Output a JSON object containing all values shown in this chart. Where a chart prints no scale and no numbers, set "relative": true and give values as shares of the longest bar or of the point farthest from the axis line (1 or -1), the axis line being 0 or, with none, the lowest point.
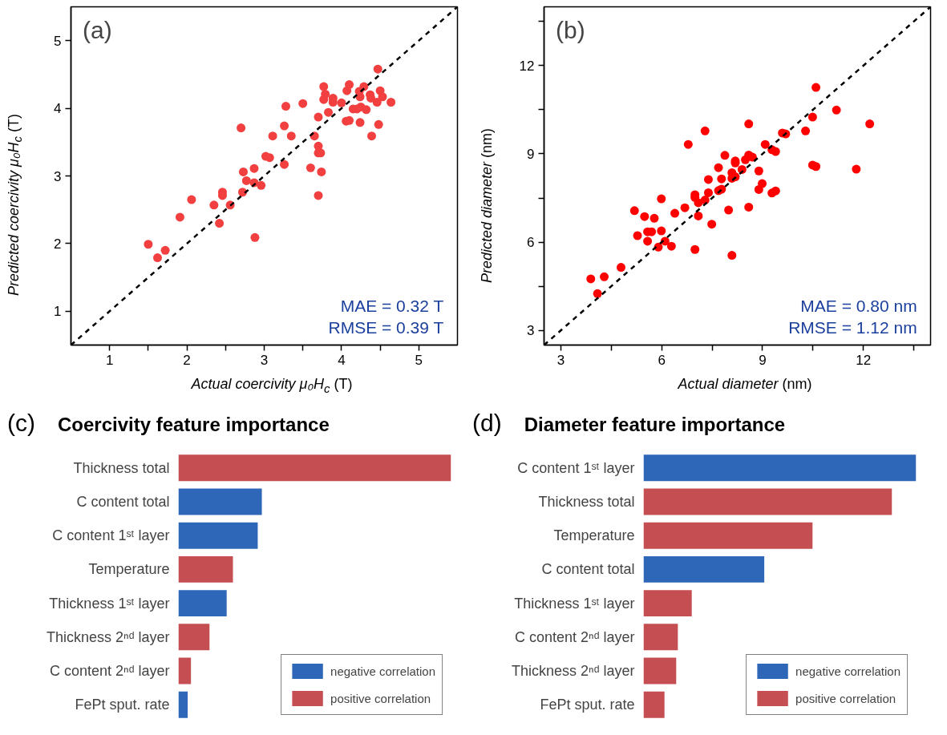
{
  "chart_data": [
    {
      "type": "scatter",
      "annotations": [
        "(a)",
        "MAE = 0.32 T",
        "RMSE = 0.39 T"
      ],
      "xlabel": "Actual coercivity μ₀H$_{c}$ (T)",
      "ylabel": "Predicted coercivity μ₀H$_{c}$ (T)",
      "xlim": [
        0.5,
        5.5
      ],
      "ylim": [
        0.5,
        5.5
      ],
      "xticks": [
        1,
        {
          "value": 1.5,
          "label": null
        },
        2,
        {
          "value": 2.5,
          "label": null
        },
        3,
        {
          "value": 3.5,
          "label": null
        },
        4,
        {
          "value": 4.5,
          "label": null
        },
        5
      ],
      "yticks": [
        1,
        2,
        3,
        4,
        5
      ],
      "series": [
        {
          "marker": "circle",
          "color": "#f23f3f",
          "x": [
            1.5,
            1.62,
            1.72,
            1.91,
            2.06,
            2.35,
            2.42,
            2.46,
            2.46,
            2.56,
            2.7,
            2.72,
            2.73,
            2.77,
            2.87,
            2.87,
            2.88,
            2.96,
            3.02,
            3.07,
            3.11,
            3.26,
            3.26,
            3.28,
            3.35,
            3.5,
            3.6,
            3.65,
            3.7,
            3.7,
            3.7,
            3.73,
            3.74,
            3.7,
            3.77,
            3.79,
            3.77,
            3.83,
            3.89,
            3.89,
            4.0,
            4.06,
            4.1,
            4.07,
            4.1,
            4.15,
            4.2,
            4.24,
            4.23,
            4.24,
            4.25,
            4.29,
            4.32,
            4.37,
            4.38,
            4.39,
            4.46,
            4.47,
            4.48,
            4.5,
            4.53,
            4.64
          ],
          "values": [
            1.99,
            1.79,
            1.9,
            2.39,
            2.65,
            2.57,
            2.3,
            2.76,
            2.71,
            2.57,
            3.71,
            2.76,
            3.06,
            2.93,
            3.11,
            2.9,
            2.09,
            2.86,
            3.29,
            3.27,
            3.59,
            3.17,
            3.74,
            4.03,
            3.59,
            4.07,
            3.12,
            3.59,
            3.87,
            3.44,
            3.34,
            3.34,
            3.06,
            2.71,
            4.32,
            4.21,
            4.13,
            3.94,
            4.15,
            4.09,
            4.08,
            3.81,
            3.82,
            4.26,
            4.35,
            3.99,
            3.99,
            4.17,
            4.25,
            3.79,
            4.02,
            4.32,
            3.98,
            4.2,
            4.15,
            3.59,
            4.09,
            4.58,
            3.76,
            4.26,
            4.17,
            4.09
          ]
        },
        {
          "type": "line",
          "marker": "none",
          "color": "#000000",
          "line_style": "dashed",
          "x": [
            0.5,
            5.5
          ],
          "values": [
            0.5,
            5.5
          ]
        }
      ]
    },
    {
      "type": "scatter",
      "annotations": [
        "(b)",
        "MAE = 0.80 nm",
        "RMSE = 1.12 nm"
      ],
      "xlabel": "Actual diameter (nm)",
      "ylabel": "Predicted diameter (nm)",
      "xlim": [
        2.5,
        14
      ],
      "ylim": [
        2.5,
        14
      ],
      "xticks": [
        3,
        {
          "value": 4.5,
          "label": null
        },
        6,
        {
          "value": 7.5,
          "label": null
        },
        9,
        {
          "value": 10.5,
          "label": null
        },
        12,
        {
          "value": 13.5,
          "label": null
        }
      ],
      "yticks": [
        3,
        {
          "value": 4.5,
          "label": null
        },
        6,
        {
          "value": 7.5,
          "label": null
        },
        9,
        {
          "value": 10.5,
          "label": null
        },
        12,
        {
          "value": 13.5,
          "label": null
        }
      ],
      "series": [
        {
          "marker": "circle",
          "color": "#ff0000",
          "x": [
            3.89,
            4.09,
            4.29,
            4.79,
            5.19,
            5.28,
            5.49,
            5.58,
            5.58,
            5.7,
            5.78,
            5.9,
            5.99,
            5.99,
            6.1,
            6.29,
            6.39,
            6.69,
            6.79,
            6.99,
            6.99,
            6.99,
            7.09,
            7.09,
            7.29,
            7.29,
            7.39,
            7.39,
            7.49,
            7.69,
            7.69,
            7.78,
            7.78,
            7.88,
            7.99,
            8.09,
            8.09,
            8.09,
            8.19,
            8.19,
            8.19,
            8.39,
            8.49,
            8.59,
            8.59,
            8.59,
            8.7,
            8.89,
            8.89,
            8.99,
            9.08,
            9.28,
            9.28,
            9.39,
            9.39,
            9.59,
            9.69,
            10.28,
            10.49,
            10.49,
            10.59,
            10.59,
            11.2,
            11.79,
            12.19
          ],
          "values": [
            4.75,
            4.25,
            4.82,
            5.14,
            7.07,
            6.22,
            6.87,
            6.35,
            6.03,
            6.35,
            6.81,
            5.83,
            6.38,
            7.47,
            6.03,
            5.86,
            6.98,
            7.17,
            9.32,
            5.75,
            7.61,
            7.52,
            7.34,
            6.89,
            9.78,
            7.43,
            8.13,
            7.68,
            6.61,
            8.53,
            7.75,
            8.15,
            7.8,
            8.95,
            7.09,
            8.36,
            8.17,
            5.55,
            8.76,
            8.69,
            8.22,
            8.47,
            8.8,
            10.02,
            8.96,
            7.19,
            8.89,
            8.42,
            7.79,
            7.99,
            9.32,
            9.14,
            7.67,
            9.08,
            7.74,
            9.71,
            9.68,
            9.78,
            10.25,
            8.62,
            11.26,
            8.57,
            10.49,
            8.48,
            10.02
          ]
        },
        {
          "type": "line",
          "marker": "none",
          "color": "#000000",
          "line_style": "dashed",
          "x": [
            2.5,
            14
          ],
          "values": [
            2.5,
            14
          ]
        }
      ]
    },
    {
      "type": "bar",
      "orientation": "horizontal",
      "relative": true,
      "tick_labels": "y",
      "title": "Coercivity feature importance",
      "annotations": [
        "(c)"
      ],
      "legend": "bottom right",
      "categories": [
        "Thickness total",
        "C content total",
        "C content 1ˢᵗ layer",
        "Temperature",
        "Thickness 1ˢᵗ layer",
        "Thickness 2ⁿᵈ layer",
        "C content 2ⁿᵈ layer",
        "FePt sput. rate"
      ],
      "series": [
        {
          "name": "negative correlation",
          "color": "#2e67b8",
          "values": [
            null,
            0.306,
            0.291,
            null,
            0.177,
            null,
            null,
            0.034
          ]
        },
        {
          "name": "positive correlation",
          "color": "#c44e52",
          "values": [
            1,
            null,
            null,
            0.2,
            null,
            0.114,
            0.046,
            null
          ]
        }
      ]
    },
    {
      "type": "bar",
      "orientation": "horizontal",
      "relative": true,
      "tick_labels": "y",
      "title": "Diameter feature importance",
      "annotations": [
        "(d)"
      ],
      "legend": "bottom right",
      "categories": [
        "C content 1ˢᵗ layer",
        "Thickness total",
        "Temperature",
        "C content total",
        "Thickness 1ˢᵗ layer",
        "C content 2ⁿᵈ layer",
        "Thickness 2ⁿᵈ layer",
        "FePt sput. rate"
      ],
      "series": [
        {
          "name": "negative correlation",
          "color": "#2e67b8",
          "values": [
            1,
            null,
            null,
            0.443,
            null,
            null,
            null,
            null
          ]
        },
        {
          "name": "positive correlation",
          "color": "#c44e52",
          "values": [
            null,
            0.911,
            0.62,
            null,
            0.177,
            0.126,
            0.12,
            0.077
          ]
        }
      ]
    }
  ]
}
